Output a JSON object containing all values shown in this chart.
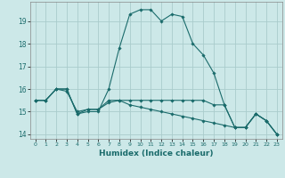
{
  "title": "",
  "xlabel": "Humidex (Indice chaleur)",
  "ylabel": "",
  "bg_color": "#cce8e8",
  "grid_color": "#aacccc",
  "line_color": "#1a6b6b",
  "xlim": [
    -0.5,
    23.5
  ],
  "ylim": [
    13.8,
    19.85
  ],
  "xticks": [
    0,
    1,
    2,
    3,
    4,
    5,
    6,
    7,
    8,
    9,
    10,
    11,
    12,
    13,
    14,
    15,
    16,
    17,
    18,
    19,
    20,
    21,
    22,
    23
  ],
  "yticks": [
    14,
    15,
    16,
    17,
    18,
    19
  ],
  "series": [
    {
      "x": [
        0,
        1,
        2,
        3,
        4,
        5,
        6,
        7,
        8,
        9,
        10,
        11,
        12,
        13,
        14,
        15,
        16,
        17,
        18,
        19,
        20,
        21,
        22,
        23
      ],
      "y": [
        15.5,
        15.5,
        16.0,
        16.0,
        14.9,
        15.1,
        15.1,
        15.5,
        15.5,
        15.5,
        15.5,
        15.5,
        15.5,
        15.5,
        15.5,
        15.5,
        15.5,
        15.3,
        15.3,
        14.3,
        14.3,
        14.9,
        14.6,
        14.0
      ]
    },
    {
      "x": [
        0,
        1,
        2,
        3,
        4,
        5,
        6,
        7,
        8,
        9,
        10,
        11,
        12,
        13,
        14,
        15,
        16,
        17,
        18,
        19,
        20,
        21,
        22,
        23
      ],
      "y": [
        15.5,
        15.5,
        16.0,
        16.0,
        14.9,
        15.0,
        15.0,
        16.0,
        17.8,
        19.3,
        19.5,
        19.5,
        19.0,
        19.3,
        19.2,
        18.0,
        17.5,
        16.7,
        15.3,
        14.3,
        14.3,
        14.9,
        14.6,
        14.0
      ]
    },
    {
      "x": [
        0,
        1,
        2,
        3,
        4,
        5,
        6,
        7,
        8,
        9,
        10,
        11,
        12,
        13,
        14,
        15,
        16,
        17,
        18,
        19,
        20,
        21,
        22,
        23
      ],
      "y": [
        15.5,
        15.5,
        16.0,
        15.9,
        15.0,
        15.1,
        15.1,
        15.4,
        15.5,
        15.3,
        15.2,
        15.1,
        15.0,
        14.9,
        14.8,
        14.7,
        14.6,
        14.5,
        14.4,
        14.3,
        14.3,
        14.9,
        14.6,
        14.0
      ]
    }
  ]
}
